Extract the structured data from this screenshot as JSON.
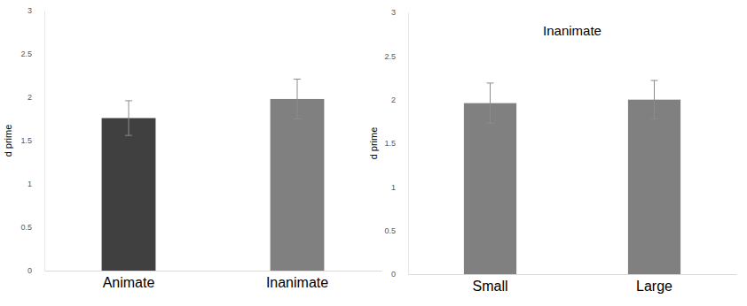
{
  "chart_data": [
    {
      "type": "bar",
      "y_label": "d prime",
      "categories": [
        "Animate",
        "Inanimate"
      ],
      "values": [
        1.76,
        1.98
      ],
      "errors": [
        0.2,
        0.23
      ],
      "colors": [
        "#404040",
        "#808080"
      ],
      "ylim": [
        0,
        3
      ],
      "yticks": [
        0,
        0.5,
        1,
        1.5,
        2,
        2.5,
        3
      ],
      "grid": false
    },
    {
      "type": "bar",
      "title": "Inanimate",
      "y_label": "d prime",
      "categories": [
        "Small",
        "Large"
      ],
      "values": [
        1.96,
        2.0
      ],
      "errors": [
        0.23,
        0.22
      ],
      "colors": [
        "#808080",
        "#808080"
      ],
      "ylim": [
        0,
        3
      ],
      "yticks": [
        0,
        0.5,
        1,
        1.5,
        2,
        2.5,
        3
      ],
      "grid": false
    }
  ]
}
